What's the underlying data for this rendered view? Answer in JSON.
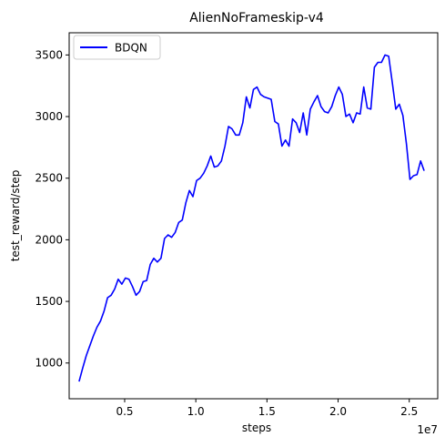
{
  "chart_data": {
    "type": "line",
    "title": "AlienNoFrameskip-v4",
    "xlabel": "steps",
    "ylabel": "test_reward/step",
    "x_offset_label": "1e7",
    "xlim": [
      1.1,
      27.0
    ],
    "ylim": [
      710,
      3680
    ],
    "x_unit": "1e6 steps (axis ticks shown in 1e7)",
    "x_ticks": [
      5,
      10,
      15,
      20,
      25
    ],
    "x_tick_labels": [
      "0.5",
      "1.0",
      "1.5",
      "2.0",
      "2.5"
    ],
    "y_ticks": [
      1000,
      1500,
      2000,
      2500,
      3000,
      3500
    ],
    "y_tick_labels": [
      "1000",
      "1500",
      "2000",
      "2500",
      "3000",
      "3500"
    ],
    "grid": false,
    "legend_position": "upper-left",
    "series": [
      {
        "name": "BDQN",
        "color": "#0000ff",
        "x": [
          1.8,
          2.05,
          2.3,
          2.55,
          2.8,
          3.05,
          3.3,
          3.55,
          3.8,
          4.05,
          4.3,
          4.55,
          4.8,
          5.05,
          5.3,
          5.55,
          5.8,
          6.05,
          6.3,
          6.55,
          6.8,
          7.05,
          7.3,
          7.55,
          7.8,
          8.05,
          8.3,
          8.55,
          8.8,
          9.05,
          9.3,
          9.55,
          9.8,
          10.05,
          10.3,
          10.55,
          10.8,
          11.05,
          11.3,
          11.55,
          11.8,
          12.05,
          12.3,
          12.55,
          12.8,
          13.05,
          13.3,
          13.55,
          13.8,
          14.05,
          14.3,
          14.55,
          14.8,
          15.05,
          15.3,
          15.55,
          15.8,
          16.05,
          16.3,
          16.55,
          16.8,
          17.05,
          17.3,
          17.55,
          17.8,
          18.05,
          18.3,
          18.55,
          18.8,
          19.05,
          19.3,
          19.55,
          19.8,
          20.05,
          20.3,
          20.55,
          20.8,
          21.05,
          21.3,
          21.55,
          21.8,
          22.05,
          22.3,
          22.55,
          22.8,
          23.05,
          23.3,
          23.55,
          23.8,
          24.05,
          24.3,
          24.55,
          24.8,
          25.05,
          25.3,
          25.55,
          25.8,
          26.05
        ],
        "values": [
          850,
          960,
          1060,
          1140,
          1220,
          1290,
          1340,
          1420,
          1530,
          1550,
          1600,
          1680,
          1640,
          1690,
          1680,
          1620,
          1550,
          1580,
          1660,
          1670,
          1800,
          1850,
          1820,
          1850,
          2010,
          2040,
          2020,
          2060,
          2140,
          2160,
          2300,
          2400,
          2350,
          2480,
          2500,
          2540,
          2600,
          2680,
          2590,
          2600,
          2640,
          2760,
          2920,
          2900,
          2850,
          2850,
          2950,
          3160,
          3070,
          3220,
          3240,
          3180,
          3160,
          3150,
          3140,
          2960,
          2940,
          2760,
          2810,
          2760,
          2980,
          2950,
          2870,
          3030,
          2850,
          3060,
          3120,
          3170,
          3080,
          3040,
          3030,
          3080,
          3170,
          3240,
          3180,
          3000,
          3020,
          2950,
          3030,
          3020,
          3240,
          3070,
          3060,
          3400,
          3440,
          3440,
          3500,
          3490,
          3280,
          3060,
          3100,
          3010,
          2780,
          2490,
          2520,
          2530,
          2640,
          2560
        ]
      }
    ]
  }
}
